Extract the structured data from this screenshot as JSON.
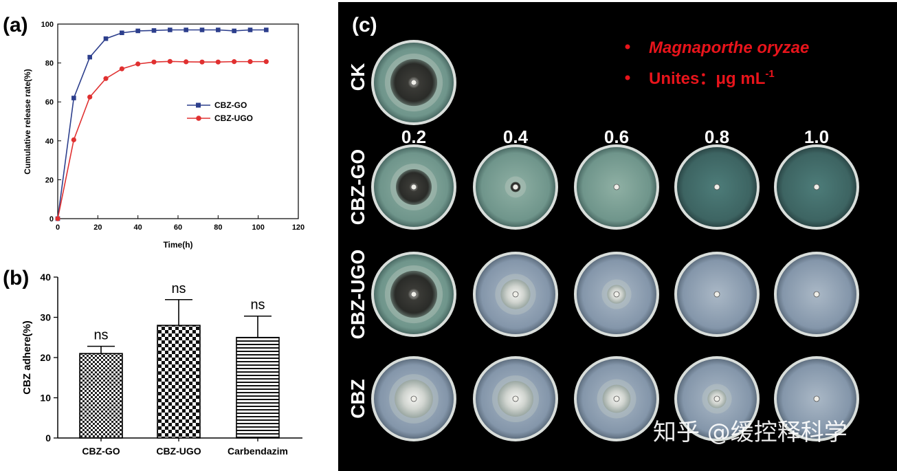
{
  "chart_data": [
    {
      "id": "a",
      "panel_label": "(a)",
      "type": "line",
      "xlabel": "Time(h)",
      "ylabel": "Cumulative release rate(%)",
      "xlim": [
        0,
        120
      ],
      "ylim": [
        0,
        100
      ],
      "xticks": [
        "0",
        "20",
        "40",
        "60",
        "80",
        "100",
        "120"
      ],
      "yticks": [
        "0",
        "20",
        "40",
        "60",
        "80",
        "100"
      ],
      "legend_position": "center-right",
      "grid": false,
      "series": [
        {
          "name": "CBZ-GO",
          "color": "#2c3e8c",
          "marker": "square",
          "x": [
            0,
            8,
            16,
            24,
            32,
            40,
            48,
            56,
            64,
            72,
            80,
            88,
            96,
            104
          ],
          "y": [
            0,
            62,
            83,
            92.5,
            95.5,
            96.5,
            96.7,
            97,
            97,
            97,
            97,
            96.5,
            97,
            97
          ]
        },
        {
          "name": "CBZ-UGO",
          "color": "#e03030",
          "marker": "circle",
          "x": [
            0,
            8,
            16,
            24,
            32,
            40,
            48,
            56,
            64,
            72,
            80,
            88,
            96,
            104
          ],
          "y": [
            0,
            40.5,
            62.5,
            72,
            77,
            79.5,
            80.5,
            80.8,
            80.6,
            80.5,
            80.5,
            80.7,
            80.7,
            80.7
          ]
        }
      ]
    },
    {
      "id": "b",
      "panel_label": "(b)",
      "type": "bar",
      "ylabel": "CBZ adhere(%)",
      "ylim": [
        0,
        40
      ],
      "yticks": [
        "0",
        "10",
        "20",
        "30",
        "40"
      ],
      "categories": [
        "CBZ-GO",
        "CBZ-UGO",
        "Carbendazim"
      ],
      "values": [
        21,
        28,
        25
      ],
      "errors": [
        1.8,
        6.4,
        5.3
      ],
      "annotations": [
        "ns",
        "ns",
        "ns"
      ],
      "patterns": [
        "checker-fine",
        "checker-coarse",
        "horizontal-lines"
      ]
    }
  ],
  "panel_c": {
    "panel_label": "(c)",
    "control_label": "CK",
    "note_organism": "Magnaporthe oryzae",
    "note_units": "Unites：μg mL",
    "note_units_sup": "-1",
    "concentrations": [
      "0.2",
      "0.4",
      "0.6",
      "0.8",
      "1.0"
    ],
    "rows": [
      "CBZ-GO",
      "CBZ-UGO",
      "CBZ"
    ],
    "accent_color": "#e8141b",
    "colony_growth": {
      "CK": 0.55,
      "CBZ-GO": [
        0.42,
        0.12,
        0.0,
        0.0,
        0.0
      ],
      "CBZ-UGO": [
        0.55,
        0.35,
        0.22,
        0.0,
        0.0
      ],
      "CBZ": [
        0.45,
        0.42,
        0.33,
        0.22,
        0.0
      ]
    }
  },
  "watermark": "知乎 @缓控释科学"
}
